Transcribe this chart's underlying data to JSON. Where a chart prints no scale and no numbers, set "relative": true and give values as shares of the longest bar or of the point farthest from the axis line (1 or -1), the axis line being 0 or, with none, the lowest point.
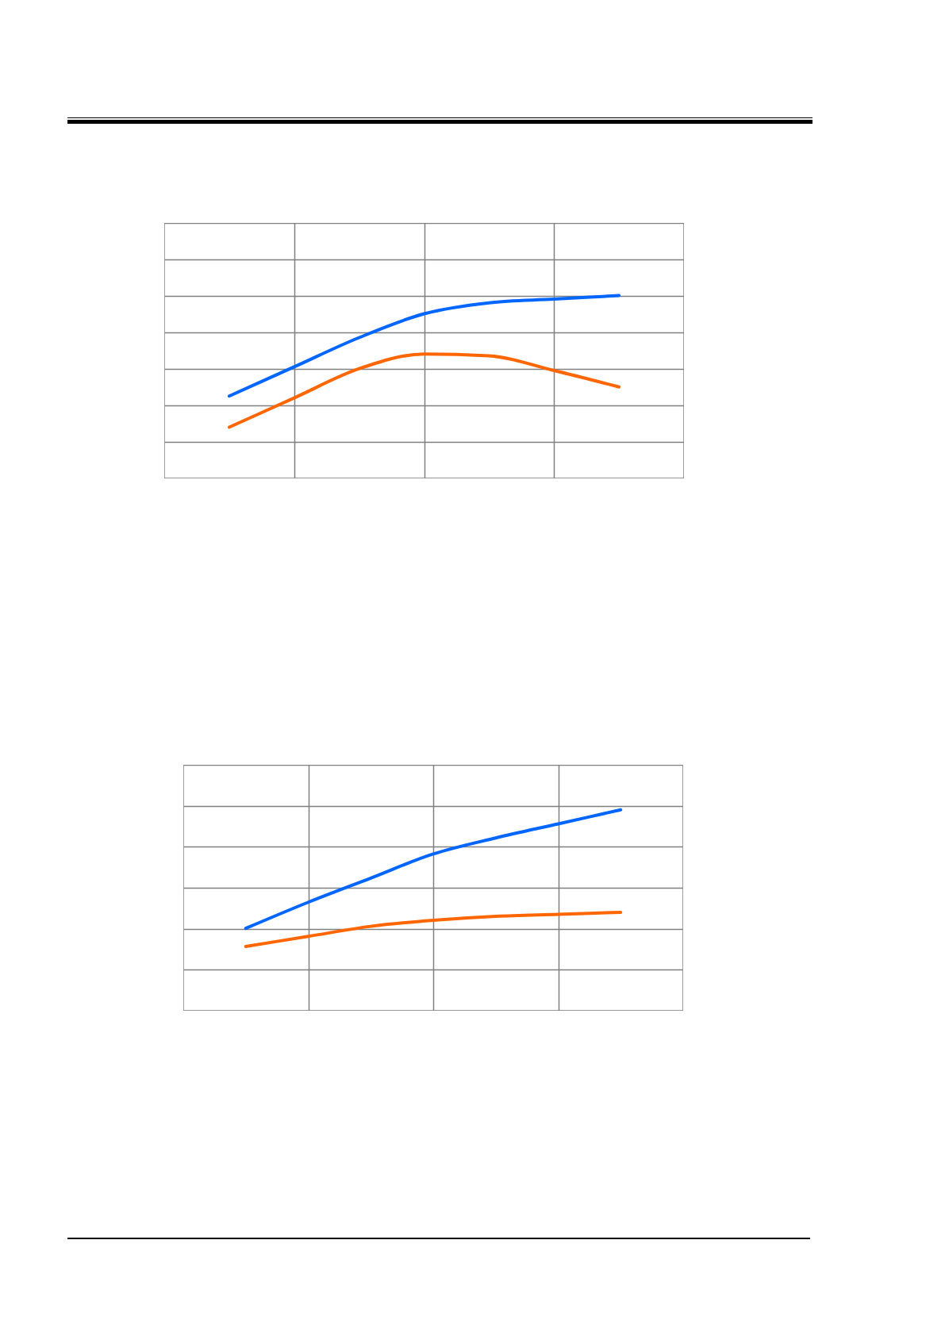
{
  "chart_data": [
    {
      "type": "line",
      "relative": true,
      "grid": true,
      "categories": [
        null,
        null,
        null,
        null,
        null,
        null,
        null
      ],
      "series": [
        {
          "color": "#0066ff",
          "values": [
            0.45,
            0.61,
            0.77,
            0.9,
            0.96,
            0.98,
            1
          ]
        },
        {
          "color": "#ff6600",
          "values": [
            0.28,
            0.44,
            0.6,
            0.68,
            0.67,
            0.59,
            0.5
          ]
        }
      ]
    },
    {
      "type": "line",
      "relative": true,
      "grid": true,
      "categories": [
        null,
        null,
        null,
        null,
        null,
        null,
        null
      ],
      "series": [
        {
          "color": "#0066ff",
          "values": [
            0.41,
            0.54,
            0.66,
            0.78,
            0.86,
            0.93,
            1
          ]
        },
        {
          "color": "#ff6600",
          "values": [
            0.32,
            0.37,
            0.42,
            0.45,
            0.47,
            0.48,
            0.49
          ]
        }
      ]
    }
  ]
}
